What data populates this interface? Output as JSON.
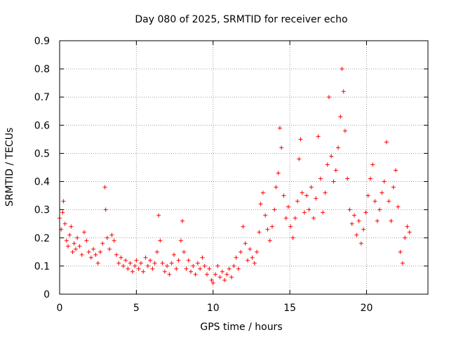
{
  "chart_data": {
    "type": "scatter",
    "title": "Day 080 of 2025, SRMTID for receiver echo",
    "xlabel": "GPS time / hours",
    "ylabel": "SRMTID / TECUs",
    "xlim": [
      0,
      24
    ],
    "ylim": [
      0,
      0.9
    ],
    "x_ticks": [
      0,
      5,
      10,
      15,
      20
    ],
    "x_tick_labels": [
      "0",
      "5",
      "10",
      "15",
      "20"
    ],
    "y_ticks": [
      0,
      0.1,
      0.2,
      0.3,
      0.4,
      0.5,
      0.6,
      0.7,
      0.8,
      0.9
    ],
    "y_tick_labels": [
      "0",
      "0.1",
      "0.2",
      "0.3",
      "0.4",
      "0.5",
      "0.6",
      "0.7",
      "0.8",
      "0.9"
    ],
    "grid": true,
    "marker": "+",
    "marker_color": "#ff0000",
    "series": [
      {
        "name": "SRMTID",
        "points": [
          [
            0.0,
            0.27
          ],
          [
            0.1,
            0.23
          ],
          [
            0.2,
            0.29
          ],
          [
            0.25,
            0.33
          ],
          [
            0.35,
            0.25
          ],
          [
            0.45,
            0.19
          ],
          [
            0.55,
            0.17
          ],
          [
            0.65,
            0.21
          ],
          [
            0.75,
            0.24
          ],
          [
            0.85,
            0.15
          ],
          [
            0.95,
            0.18
          ],
          [
            1.05,
            0.16
          ],
          [
            1.15,
            0.2
          ],
          [
            1.3,
            0.17
          ],
          [
            1.45,
            0.14
          ],
          [
            1.6,
            0.22
          ],
          [
            1.75,
            0.19
          ],
          [
            1.9,
            0.15
          ],
          [
            2.05,
            0.13
          ],
          [
            2.2,
            0.16
          ],
          [
            2.35,
            0.14
          ],
          [
            2.5,
            0.11
          ],
          [
            2.65,
            0.15
          ],
          [
            2.8,
            0.18
          ],
          [
            2.95,
            0.38
          ],
          [
            3.0,
            0.3
          ],
          [
            3.1,
            0.2
          ],
          [
            3.25,
            0.16
          ],
          [
            3.4,
            0.21
          ],
          [
            3.55,
            0.19
          ],
          [
            3.7,
            0.14
          ],
          [
            3.85,
            0.11
          ],
          [
            4.0,
            0.13
          ],
          [
            4.15,
            0.1
          ],
          [
            4.3,
            0.12
          ],
          [
            4.45,
            0.09
          ],
          [
            4.6,
            0.11
          ],
          [
            4.75,
            0.08
          ],
          [
            4.9,
            0.1
          ],
          [
            5.0,
            0.12
          ],
          [
            5.15,
            0.09
          ],
          [
            5.3,
            0.11
          ],
          [
            5.45,
            0.08
          ],
          [
            5.6,
            0.13
          ],
          [
            5.75,
            0.1
          ],
          [
            5.9,
            0.12
          ],
          [
            6.05,
            0.09
          ],
          [
            6.2,
            0.11
          ],
          [
            6.35,
            0.15
          ],
          [
            6.45,
            0.28
          ],
          [
            6.55,
            0.19
          ],
          [
            6.7,
            0.11
          ],
          [
            6.85,
            0.08
          ],
          [
            7.0,
            0.1
          ],
          [
            7.15,
            0.07
          ],
          [
            7.3,
            0.11
          ],
          [
            7.45,
            0.14
          ],
          [
            7.6,
            0.09
          ],
          [
            7.75,
            0.12
          ],
          [
            7.9,
            0.19
          ],
          [
            8.0,
            0.26
          ],
          [
            8.1,
            0.15
          ],
          [
            8.25,
            0.09
          ],
          [
            8.4,
            0.12
          ],
          [
            8.55,
            0.08
          ],
          [
            8.7,
            0.1
          ],
          [
            8.85,
            0.07
          ],
          [
            9.0,
            0.11
          ],
          [
            9.15,
            0.09
          ],
          [
            9.3,
            0.13
          ],
          [
            9.45,
            0.1
          ],
          [
            9.6,
            0.07
          ],
          [
            9.75,
            0.09
          ],
          [
            9.9,
            0.05
          ],
          [
            10.0,
            0.04
          ],
          [
            10.15,
            0.07
          ],
          [
            10.3,
            0.1
          ],
          [
            10.45,
            0.06
          ],
          [
            10.6,
            0.08
          ],
          [
            10.75,
            0.05
          ],
          [
            10.9,
            0.07
          ],
          [
            11.05,
            0.09
          ],
          [
            11.2,
            0.06
          ],
          [
            11.35,
            0.1
          ],
          [
            11.5,
            0.13
          ],
          [
            11.65,
            0.09
          ],
          [
            11.8,
            0.15
          ],
          [
            11.95,
            0.24
          ],
          [
            12.1,
            0.18
          ],
          [
            12.25,
            0.12
          ],
          [
            12.4,
            0.16
          ],
          [
            12.55,
            0.13
          ],
          [
            12.7,
            0.11
          ],
          [
            12.85,
            0.15
          ],
          [
            13.0,
            0.22
          ],
          [
            13.1,
            0.32
          ],
          [
            13.25,
            0.36
          ],
          [
            13.4,
            0.28
          ],
          [
            13.55,
            0.23
          ],
          [
            13.7,
            0.19
          ],
          [
            13.85,
            0.24
          ],
          [
            14.0,
            0.3
          ],
          [
            14.1,
            0.38
          ],
          [
            14.25,
            0.43
          ],
          [
            14.35,
            0.59
          ],
          [
            14.45,
            0.52
          ],
          [
            14.6,
            0.35
          ],
          [
            14.75,
            0.27
          ],
          [
            14.9,
            0.31
          ],
          [
            15.05,
            0.24
          ],
          [
            15.2,
            0.2
          ],
          [
            15.35,
            0.27
          ],
          [
            15.5,
            0.33
          ],
          [
            15.6,
            0.48
          ],
          [
            15.7,
            0.55
          ],
          [
            15.8,
            0.36
          ],
          [
            15.95,
            0.29
          ],
          [
            16.1,
            0.35
          ],
          [
            16.25,
            0.3
          ],
          [
            16.4,
            0.38
          ],
          [
            16.55,
            0.27
          ],
          [
            16.7,
            0.34
          ],
          [
            16.85,
            0.56
          ],
          [
            17.0,
            0.41
          ],
          [
            17.15,
            0.29
          ],
          [
            17.3,
            0.36
          ],
          [
            17.45,
            0.46
          ],
          [
            17.55,
            0.7
          ],
          [
            17.7,
            0.49
          ],
          [
            17.85,
            0.4
          ],
          [
            18.0,
            0.44
          ],
          [
            18.15,
            0.52
          ],
          [
            18.3,
            0.63
          ],
          [
            18.4,
            0.8
          ],
          [
            18.5,
            0.72
          ],
          [
            18.6,
            0.58
          ],
          [
            18.75,
            0.41
          ],
          [
            18.9,
            0.3
          ],
          [
            19.05,
            0.25
          ],
          [
            19.2,
            0.28
          ],
          [
            19.35,
            0.21
          ],
          [
            19.5,
            0.26
          ],
          [
            19.65,
            0.18
          ],
          [
            19.8,
            0.23
          ],
          [
            19.95,
            0.29
          ],
          [
            20.1,
            0.35
          ],
          [
            20.25,
            0.41
          ],
          [
            20.4,
            0.46
          ],
          [
            20.55,
            0.33
          ],
          [
            20.7,
            0.26
          ],
          [
            20.85,
            0.3
          ],
          [
            21.0,
            0.36
          ],
          [
            21.15,
            0.4
          ],
          [
            21.3,
            0.54
          ],
          [
            21.45,
            0.33
          ],
          [
            21.6,
            0.26
          ],
          [
            21.75,
            0.38
          ],
          [
            21.9,
            0.44
          ],
          [
            22.05,
            0.31
          ],
          [
            22.2,
            0.15
          ],
          [
            22.35,
            0.11
          ],
          [
            22.5,
            0.2
          ],
          [
            22.65,
            0.24
          ],
          [
            22.8,
            0.22
          ]
        ]
      }
    ]
  }
}
